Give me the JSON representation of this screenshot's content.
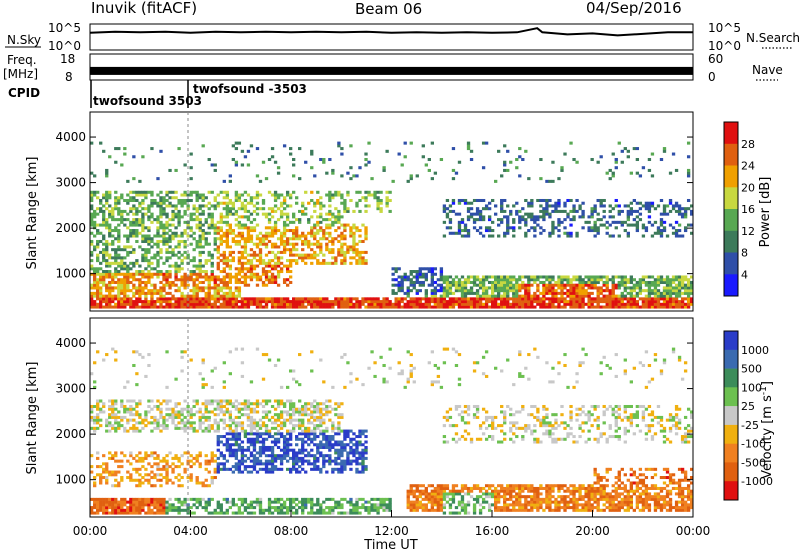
{
  "header": {
    "station": "Inuvik (fitACF)",
    "beam": "Beam 06",
    "date": "04/Sep/2016"
  },
  "chart_data": [
    {
      "type": "line",
      "name": "noise-panel",
      "left_label": "N.Sky",
      "right_label": "N.Search",
      "left_ticks": [
        "10^5",
        "10^0"
      ],
      "right_ticks": [
        "10^5",
        "10^0"
      ],
      "scale": "log",
      "ylim_log10": [
        0,
        5
      ],
      "x_hours": [
        0,
        0.5,
        1,
        2,
        3,
        4,
        5,
        6,
        7,
        8,
        9,
        10,
        11,
        12,
        13,
        14,
        15,
        16,
        17,
        17.8,
        18,
        19,
        20,
        21,
        22,
        23,
        24
      ],
      "sky_log10": [
        3.3,
        3.4,
        3.5,
        3.4,
        3.5,
        3.3,
        3.5,
        3.4,
        3.5,
        3.4,
        3.5,
        3.4,
        3.5,
        3.3,
        3.4,
        3.3,
        3.4,
        3.3,
        3.4,
        4.2,
        3.4,
        3.0,
        3.2,
        2.8,
        3.1,
        3.4,
        3.4
      ],
      "search_dotted": true
    },
    {
      "type": "area",
      "name": "frequency-panel",
      "left_label": "Freq.",
      "left_unit": "[MHz]",
      "left_ticks": [
        "18",
        "8"
      ],
      "right_label": "Nave",
      "right_ticks": [
        "60",
        "0"
      ],
      "freq_ylim": [
        8,
        18
      ],
      "freq_mhz": 11.5,
      "nave_dotted": true
    },
    {
      "type": "table",
      "name": "cpid-panel",
      "label": "CPID",
      "segments": [
        {
          "start_hour": 0.0,
          "name": "twofsound 3503"
        },
        {
          "start_hour": 3.9,
          "name": "twofsound -3503"
        }
      ]
    },
    {
      "type": "heatmap",
      "name": "power-panel",
      "ylabel": "Slant Range [km]",
      "yticks": [
        1000,
        2000,
        3000,
        4000
      ],
      "ylim": [
        180,
        4550
      ],
      "colorbar_label": "Power [dB]",
      "colorbar_ticks": [
        "4",
        "8",
        "12",
        "16",
        "20",
        "24",
        "28"
      ],
      "colors": [
        "#1a1aff",
        "#2f4fa8",
        "#3c7a5a",
        "#58a852",
        "#c8d840",
        "#f0a000",
        "#e06010",
        "#e01010"
      ],
      "blobs": [
        {
          "t0": 0,
          "t1": 24,
          "r0": 200,
          "r1": 450,
          "level": 6.5,
          "density": 0.9
        },
        {
          "t0": 0,
          "t1": 6,
          "r0": 450,
          "r1": 1000,
          "level": 5.0,
          "density": 0.75
        },
        {
          "t0": 2,
          "t1": 8,
          "r0": 700,
          "r1": 1500,
          "level": 5.5,
          "density": 0.6
        },
        {
          "t0": 5,
          "t1": 11,
          "r0": 1200,
          "r1": 2100,
          "level": 5.0,
          "density": 0.55
        },
        {
          "t0": 0,
          "t1": 10,
          "r0": 2000,
          "r1": 2800,
          "level": 3.5,
          "density": 0.45
        },
        {
          "t0": 0,
          "t1": 5,
          "r0": 1000,
          "r1": 2800,
          "level": 3.0,
          "density": 0.5
        },
        {
          "t0": 7,
          "t1": 12,
          "r0": 2300,
          "r1": 2800,
          "level": 3.5,
          "density": 0.35
        },
        {
          "t0": 12.5,
          "t1": 24,
          "r0": 450,
          "r1": 950,
          "level": 3.0,
          "density": 0.75
        },
        {
          "t0": 14,
          "t1": 24,
          "r0": 1800,
          "r1": 2600,
          "level": 1.5,
          "density": 0.35
        },
        {
          "t0": 17,
          "t1": 21,
          "r0": 450,
          "r1": 750,
          "level": 6.0,
          "density": 0.7
        },
        {
          "t0": 12,
          "t1": 14,
          "r0": 500,
          "r1": 1100,
          "level": 1.2,
          "density": 0.6
        },
        {
          "t0": 0,
          "t1": 24,
          "r0": 3000,
          "r1": 3900,
          "level": 2.0,
          "density": 0.06
        }
      ]
    },
    {
      "type": "heatmap",
      "name": "velocity-panel",
      "ylabel": "Slant Range [km]",
      "yticks": [
        1000,
        2000,
        3000,
        4000
      ],
      "ylim": [
        180,
        4550
      ],
      "xticks": [
        "00:00",
        "04:00",
        "08:00",
        "12:00",
        "16:00",
        "20:00",
        "00:00"
      ],
      "xlabel": "Time UT",
      "colorbar_label": "Velocity [m s^-1]",
      "colorbar_ticks": [
        "1000",
        "500",
        "100",
        "25",
        "-25",
        "-100",
        "-500",
        "-1000"
      ],
      "colors": [
        "#2a3cc8",
        "#3a6ab0",
        "#3c8c5a",
        "#6cc050",
        "#c8c8c8",
        "#f0b010",
        "#f08020",
        "#e06010",
        "#e01010"
      ],
      "blobs": [
        {
          "t0": 0,
          "t1": 3,
          "r0": 200,
          "r1": 600,
          "level": 6.8,
          "density": 0.9
        },
        {
          "t0": 3,
          "t1": 12,
          "r0": 200,
          "r1": 600,
          "level": 2.5,
          "density": 0.6
        },
        {
          "t0": 12.5,
          "t1": 24,
          "r0": 300,
          "r1": 900,
          "level": 6.2,
          "density": 0.75
        },
        {
          "t0": 14,
          "t1": 16,
          "r0": 200,
          "r1": 700,
          "level": 3.0,
          "density": 0.5
        },
        {
          "t0": 5,
          "t1": 11,
          "r0": 1100,
          "r1": 2100,
          "level": 0.5,
          "density": 0.6
        },
        {
          "t0": 0,
          "t1": 10,
          "r0": 2000,
          "r1": 2750,
          "level": 4.0,
          "density": 0.5
        },
        {
          "t0": 0,
          "t1": 5,
          "r0": 800,
          "r1": 1600,
          "level": 5.5,
          "density": 0.4
        },
        {
          "t0": 14,
          "t1": 24,
          "r0": 1800,
          "r1": 2600,
          "level": 4.0,
          "density": 0.3
        },
        {
          "t0": 20,
          "t1": 24,
          "r0": 800,
          "r1": 1250,
          "level": 6.5,
          "density": 0.45
        },
        {
          "t0": 0,
          "t1": 24,
          "r0": 3000,
          "r1": 3900,
          "level": 4.0,
          "density": 0.06
        }
      ]
    }
  ]
}
